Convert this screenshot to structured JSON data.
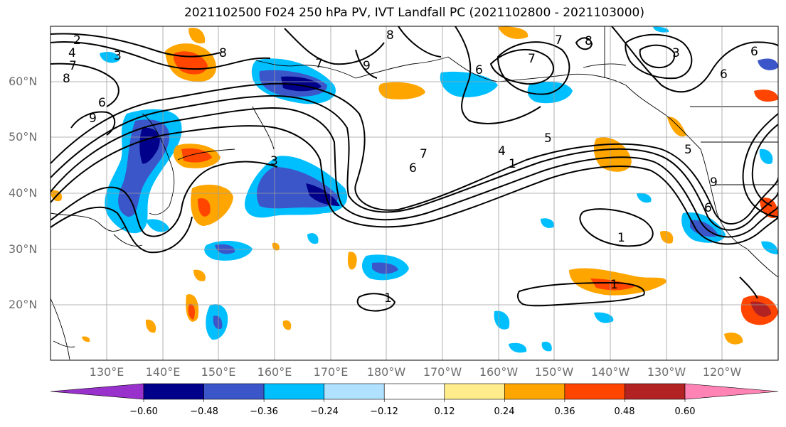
{
  "title": "2021102500 F024 250 hPa PV, IVT Landfall PC (2021102800 - 2021103000)",
  "latitude_labels": [
    "60°N",
    "50°N",
    "40°N",
    "30°N",
    "20°N"
  ],
  "longitude_labels": [
    "130°E",
    "140°E",
    "150°E",
    "160°E",
    "170°E",
    "180°W",
    "170°W",
    "160°W",
    "150°W",
    "140°W",
    "130°W",
    "120°W"
  ],
  "contour_labels": [
    "2",
    "4",
    "7",
    "8",
    "3",
    "8",
    "6",
    "9",
    "7",
    "8",
    "9",
    "7",
    "7",
    "6",
    "8",
    "3",
    "6",
    "6",
    "5",
    "7",
    "4",
    "6",
    "1",
    "5",
    "1",
    "3",
    "1",
    "1",
    "6",
    "9"
  ],
  "colorbar": {
    "colors": [
      "#9932cc",
      "#00008b",
      "#3a56c9",
      "#00bfff",
      "#b0e2ff",
      "#ffffff",
      "#ffec8b",
      "#ffa500",
      "#ff4500",
      "#b22222",
      "#ff83b4"
    ],
    "tick_labels": [
      "−0.60",
      "−0.48",
      "−0.36",
      "−0.24",
      "−0.12",
      "0.12",
      "0.24",
      "0.36",
      "0.48",
      "0.60"
    ]
  }
}
